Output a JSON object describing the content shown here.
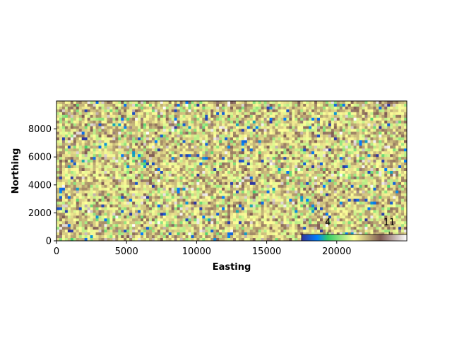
{
  "chart_data": {
    "type": "heatmap",
    "title": "",
    "xlabel": "Easting",
    "ylabel": "Northing",
    "xlim": [
      0,
      25000
    ],
    "ylim": [
      0,
      10000
    ],
    "x_ticks": [
      0,
      5000,
      10000,
      15000,
      20000
    ],
    "x_tick_labels": [
      "0",
      "5000",
      "10000",
      "15000",
      "20000"
    ],
    "y_ticks": [
      0,
      2000,
      4000,
      6000,
      8000
    ],
    "y_tick_labels": [
      "0",
      "2000",
      "4000",
      "6000",
      "8000"
    ],
    "grid": false,
    "colormap": "terrain",
    "colormap_colors": [
      "#333399",
      "#0080ff",
      "#33cc66",
      "#ffff99",
      "#805c54",
      "#ffffff"
    ],
    "colorbar": {
      "placement": "bottom-right inset",
      "orientation": "horizontal",
      "range": [
        1,
        13
      ],
      "ticks": [
        4,
        11
      ],
      "tick_labels": [
        "4",
        "11"
      ]
    },
    "grid_shape": {
      "columns": 125,
      "rows": 50
    },
    "cell_size_m": 200,
    "value_range": [
      1,
      13
    ]
  }
}
